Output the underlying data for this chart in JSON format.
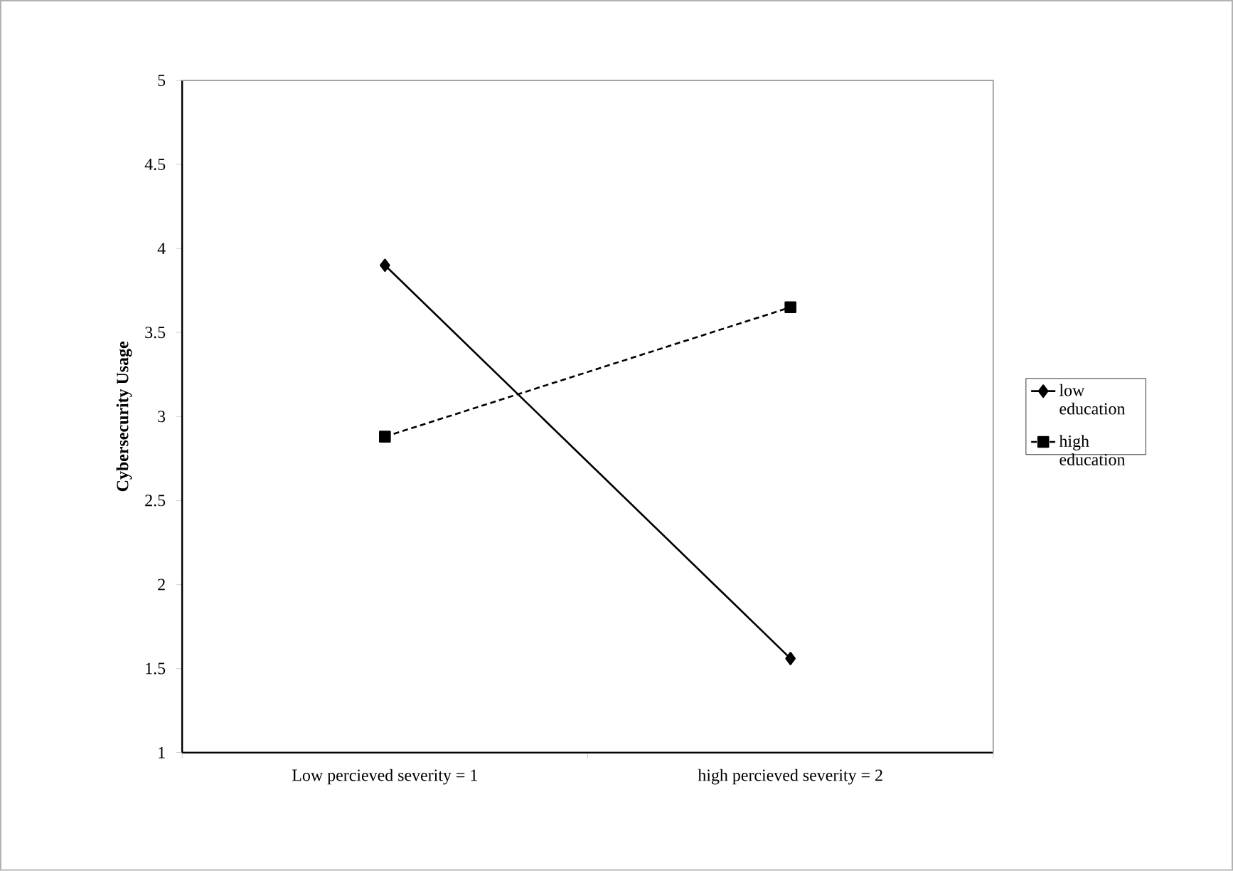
{
  "chart_data": {
    "type": "line",
    "ylabel": "Cybersecurity Usage",
    "categories": [
      "Low percieved  severity = 1",
      "high percieved  severity = 2"
    ],
    "series": [
      {
        "name": "low education",
        "color": "#000000",
        "values": [
          3.9,
          1.56
        ],
        "marker": "diamond",
        "line_style": "solid"
      },
      {
        "name": "high education",
        "color": "#000000",
        "values": [
          2.88,
          3.65
        ],
        "marker": "square",
        "line_style": "dashed"
      }
    ],
    "ylim": [
      1,
      5
    ],
    "yticks": [
      1,
      1.5,
      2,
      2.5,
      3,
      3.5,
      4,
      4.5,
      5
    ],
    "grid": false,
    "legend": "right"
  }
}
